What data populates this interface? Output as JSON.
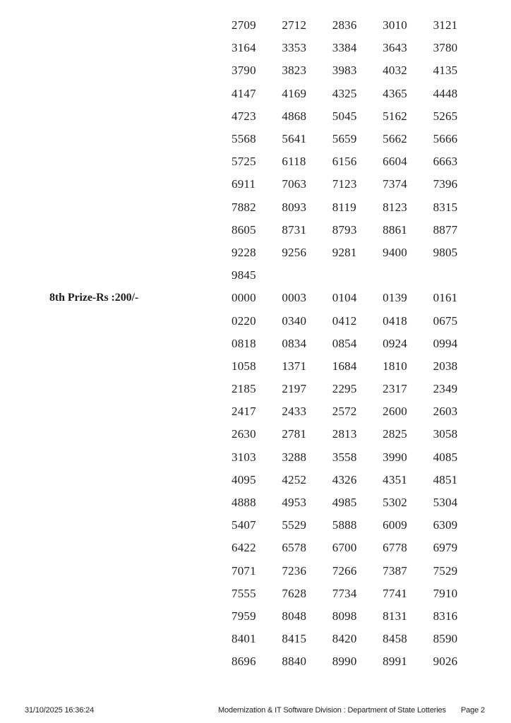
{
  "colors": {
    "page_background": "#ffffff",
    "text": "#1f1f1f"
  },
  "prize_list": {
    "blocks": [
      {
        "label": "",
        "rows": [
          [
            "2709",
            "2712",
            "2836",
            "3010",
            "3121"
          ],
          [
            "3164",
            "3353",
            "3384",
            "3643",
            "3780"
          ],
          [
            "3790",
            "3823",
            "3983",
            "4032",
            "4135"
          ],
          [
            "4147",
            "4169",
            "4325",
            "4365",
            "4448"
          ],
          [
            "4723",
            "4868",
            "5045",
            "5162",
            "5265"
          ],
          [
            "5568",
            "5641",
            "5659",
            "5662",
            "5666"
          ],
          [
            "5725",
            "6118",
            "6156",
            "6604",
            "6663"
          ],
          [
            "6911",
            "7063",
            "7123",
            "7374",
            "7396"
          ],
          [
            "7882",
            "8093",
            "8119",
            "8123",
            "8315"
          ],
          [
            "8605",
            "8731",
            "8793",
            "8861",
            "8877"
          ],
          [
            "9228",
            "9256",
            "9281",
            "9400",
            "9805"
          ],
          [
            "9845"
          ]
        ]
      },
      {
        "label": "8th Prize-Rs :200/-",
        "rows": [
          [
            "0000",
            "0003",
            "0104",
            "0139",
            "0161"
          ],
          [
            "0220",
            "0340",
            "0412",
            "0418",
            "0675"
          ],
          [
            "0818",
            "0834",
            "0854",
            "0924",
            "0994"
          ],
          [
            "1058",
            "1371",
            "1684",
            "1810",
            "2038"
          ],
          [
            "2185",
            "2197",
            "2295",
            "2317",
            "2349"
          ],
          [
            "2417",
            "2433",
            "2572",
            "2600",
            "2603"
          ],
          [
            "2630",
            "2781",
            "2813",
            "2825",
            "3058"
          ],
          [
            "3103",
            "3288",
            "3558",
            "3990",
            "4085"
          ],
          [
            "4095",
            "4252",
            "4326",
            "4351",
            "4851"
          ],
          [
            "4888",
            "4953",
            "4985",
            "5302",
            "5304"
          ],
          [
            "5407",
            "5529",
            "5888",
            "6009",
            "6309"
          ],
          [
            "6422",
            "6578",
            "6700",
            "6778",
            "6979"
          ],
          [
            "7071",
            "7236",
            "7266",
            "7387",
            "7529"
          ],
          [
            "7555",
            "7628",
            "7734",
            "7741",
            "7910"
          ],
          [
            "7959",
            "8048",
            "8098",
            "8131",
            "8316"
          ],
          [
            "8401",
            "8415",
            "8420",
            "8458",
            "8590"
          ],
          [
            "8696",
            "8840",
            "8990",
            "8991",
            "9026"
          ]
        ]
      }
    ]
  },
  "footer": {
    "timestamp": "31/10/2025 16:36:24",
    "division": "Modernization & IT Software Division : Department of State Lotteries",
    "page_label": "Page 2"
  }
}
